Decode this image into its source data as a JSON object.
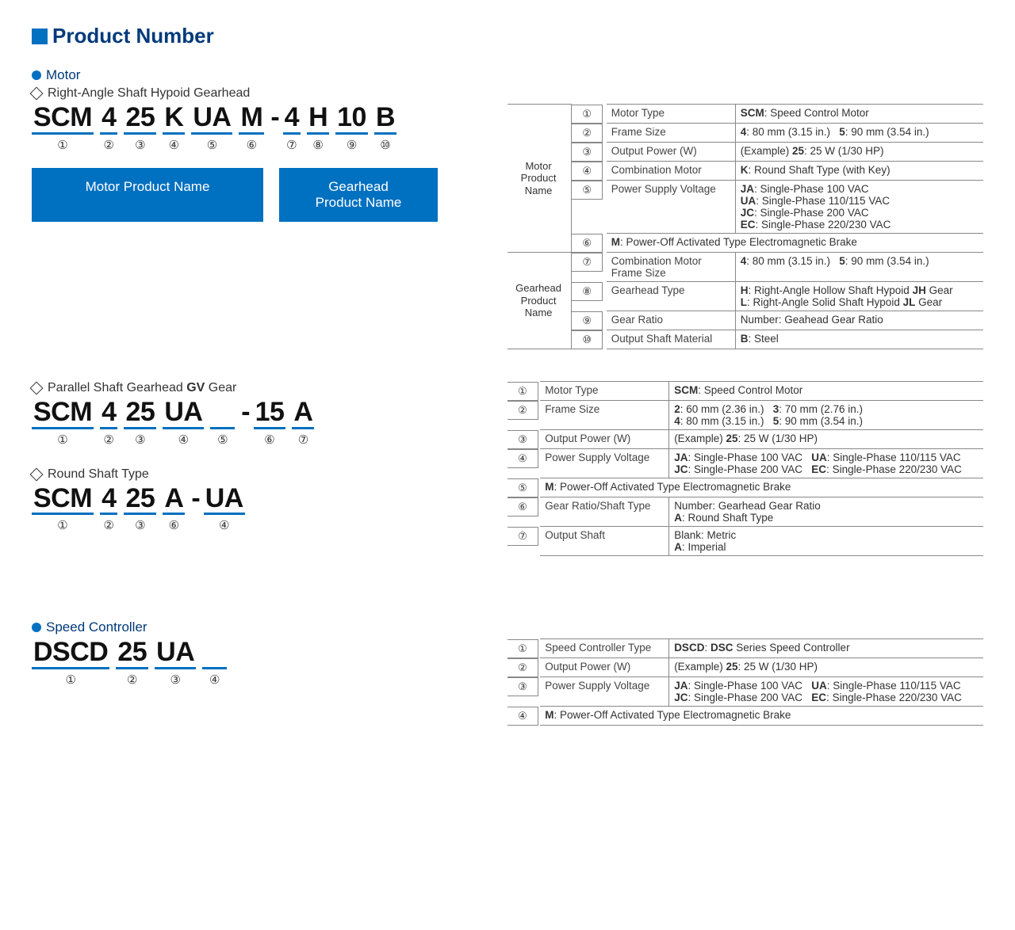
{
  "page_title": "Product Number",
  "colors": {
    "blue": "#0070c0",
    "dark_blue_text": "#003a7a",
    "border": "#888888"
  },
  "sections": {
    "motor_heading": "Motor",
    "speed_controller_heading": "Speed Controller"
  },
  "variant1": {
    "title": "Right-Angle Shaft Hypoid Gearhead",
    "segments": [
      {
        "text": "SCM",
        "num": "①"
      },
      {
        "text": "4",
        "num": "②"
      },
      {
        "text": "25",
        "num": "③"
      },
      {
        "text": "K",
        "num": "④"
      },
      {
        "text": "UA",
        "num": "⑤"
      },
      {
        "text": "M",
        "num": "⑥"
      },
      {
        "sep": "-"
      },
      {
        "text": "4",
        "num": "⑦"
      },
      {
        "text": "H",
        "num": "⑧"
      },
      {
        "text": "10",
        "num": "⑨"
      },
      {
        "text": "B",
        "num": "⑩"
      }
    ],
    "name_box_motor": "Motor Product Name",
    "name_box_gear": "Gearhead\nProduct Name"
  },
  "variant2": {
    "title_prefix": "Parallel Shaft Gearhead ",
    "title_bold": "GV",
    "title_suffix": " Gear",
    "segments": [
      {
        "text": "SCM",
        "num": "①"
      },
      {
        "text": "4",
        "num": "②"
      },
      {
        "text": "25",
        "num": "③"
      },
      {
        "text": "UA",
        "num": "④"
      },
      {
        "text": " ",
        "num": "⑤"
      },
      {
        "sep": "-"
      },
      {
        "text": "15",
        "num": "⑥"
      },
      {
        "text": "A",
        "num": "⑦"
      }
    ]
  },
  "variant3": {
    "title": "Round Shaft Type",
    "segments": [
      {
        "text": "SCM",
        "num": "①"
      },
      {
        "text": "4",
        "num": "②"
      },
      {
        "text": "25",
        "num": "③"
      },
      {
        "text": "A",
        "num": "⑥"
      },
      {
        "sep": "-"
      },
      {
        "text": "UA",
        "num": "④"
      }
    ]
  },
  "variant4": {
    "segments": [
      {
        "text": "DSCD",
        "num": "①"
      },
      {
        "text": "25",
        "num": "②"
      },
      {
        "text": "UA",
        "num": "③"
      },
      {
        "text": " ",
        "num": "④"
      }
    ]
  },
  "table1": {
    "group_motor_label": "Motor\nProduct\nName",
    "group_gear_label": "Gearhead\nProduct\nName",
    "rows_motor": [
      {
        "n": "①",
        "label": "Motor Type",
        "desc": "<b>SCM</b>: Speed Control Motor"
      },
      {
        "n": "②",
        "label": "Frame Size",
        "desc": "<b>4</b>: 80 mm (3.15 in.)&nbsp;&nbsp;&nbsp;<b>5</b>: 90 mm (3.54 in.)"
      },
      {
        "n": "③",
        "label": "Output Power (W)",
        "desc": "(Example) <b>25</b>: 25 W (1/30 HP)"
      },
      {
        "n": "④",
        "label": "Combination Motor",
        "desc": "<b>K</b>: Round Shaft Type (with Key)"
      },
      {
        "n": "⑤",
        "label": "Power Supply Voltage",
        "desc": "<b>JA</b>: Single-Phase 100 VAC<br><b>UA</b>: Single-Phase 110/115 VAC<br><b>JC</b>: Single-Phase 200 VAC<br><b>EC</b>: Single-Phase 220/230 VAC"
      },
      {
        "n": "⑥",
        "colspan_desc": "<b>M</b>: Power-Off Activated Type Electromagnetic Brake"
      }
    ],
    "rows_gear": [
      {
        "n": "⑦",
        "label": "Combination Motor Frame Size",
        "desc": "<b>4</b>: 80 mm (3.15 in.)&nbsp;&nbsp;&nbsp;<b>5</b>: 90 mm (3.54 in.)"
      },
      {
        "n": "⑧",
        "label": "Gearhead Type",
        "desc": "<b>H</b>: Right-Angle Hollow Shaft Hypoid <b>JH</b> Gear<br><b>L</b>: Right-Angle Solid Shaft Hypoid <b>JL</b> Gear"
      },
      {
        "n": "⑨",
        "label": "Gear Ratio",
        "desc": "Number: Geahead Gear Ratio"
      },
      {
        "n": "⑩",
        "label": "Output Shaft Material",
        "desc": "<b>B</b>: Steel"
      }
    ]
  },
  "table2": {
    "rows": [
      {
        "n": "①",
        "label": "Motor Type",
        "desc": "<b>SCM</b>: Speed Control Motor"
      },
      {
        "n": "②",
        "label": "Frame Size",
        "desc": "<b>2</b>: 60 mm (2.36 in.)&nbsp;&nbsp;&nbsp;<b>3</b>: 70 mm (2.76 in.)<br><b>4</b>: 80 mm (3.15 in.)&nbsp;&nbsp;&nbsp;<b>5</b>: 90 mm (3.54 in.)"
      },
      {
        "n": "③",
        "label": "Output Power (W)",
        "desc": "(Example) <b>25</b>: 25 W (1/30 HP)"
      },
      {
        "n": "④",
        "label": "Power Supply Voltage",
        "desc": "<b>JA</b>: Single-Phase 100 VAC&nbsp;&nbsp;&nbsp;<b>UA</b>: Single-Phase 110/115 VAC<br><b>JC</b>: Single-Phase 200 VAC&nbsp;&nbsp;&nbsp;<b>EC</b>: Single-Phase 220/230 VAC"
      },
      {
        "n": "⑤",
        "colspan_desc": "<b>M</b>: Power-Off Activated Type Electromagnetic Brake"
      },
      {
        "n": "⑥",
        "label": "Gear Ratio/Shaft Type",
        "desc": "Number: Gearhead Gear Ratio<br><b>A</b>: Round Shaft Type"
      },
      {
        "n": "⑦",
        "label": "Output Shaft",
        "desc": "Blank: Metric<br><b>A</b>: Imperial"
      }
    ]
  },
  "table3": {
    "rows": [
      {
        "n": "①",
        "label": "Speed Controller Type",
        "desc": "<b>DSCD</b>: <b>DSC</b> Series Speed Controller"
      },
      {
        "n": "②",
        "label": "Output Power (W)",
        "desc": "(Example) <b>25</b>: 25 W (1/30 HP)"
      },
      {
        "n": "③",
        "label": "Power Supply Voltage",
        "desc": "<b>JA</b>: Single-Phase 100 VAC&nbsp;&nbsp;&nbsp;<b>UA</b>: Single-Phase 110/115 VAC<br><b>JC</b>: Single-Phase 200 VAC&nbsp;&nbsp;&nbsp;<b>EC</b>: Single-Phase 220/230 VAC"
      },
      {
        "n": "④",
        "colspan_desc": "<b>M</b>: Power-Off Activated Type Electromagnetic Brake"
      }
    ]
  }
}
